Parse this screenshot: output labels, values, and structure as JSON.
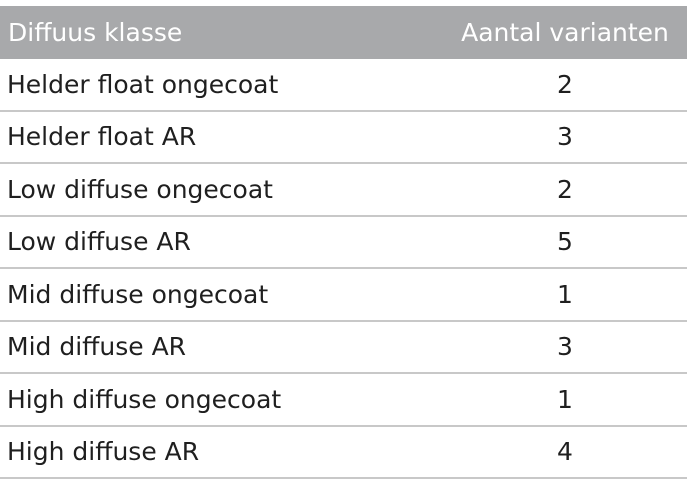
{
  "table": {
    "headers": {
      "name": "Diffuus klasse",
      "count": "Aantal varianten"
    },
    "rows": [
      {
        "name": "Helder float ongecoat",
        "count": "2"
      },
      {
        "name": "Helder float AR",
        "count": "3"
      },
      {
        "name": "Low diffuse ongecoat",
        "count": "2"
      },
      {
        "name": "Low diffuse AR",
        "count": "5"
      },
      {
        "name": "Mid diffuse ongecoat",
        "count": "1"
      },
      {
        "name": "Mid diffuse AR",
        "count": "3"
      },
      {
        "name": "High diffuse ongecoat",
        "count": "1"
      },
      {
        "name": "High diffuse AR",
        "count": "4"
      }
    ]
  },
  "colors": {
    "header_bg": "#a8a9ab",
    "header_text": "#ffffff",
    "row_text": "#1f1f1f",
    "divider": "#c8c8c8"
  }
}
